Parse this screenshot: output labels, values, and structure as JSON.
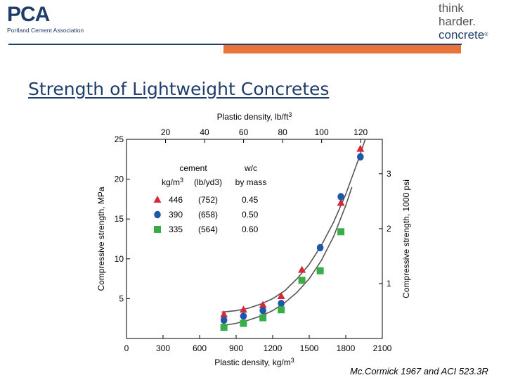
{
  "header": {
    "logo_left": "PCA",
    "logo_left_sub": "Portland Cement Association",
    "logo_right_line1": "think",
    "logo_right_line2": "harder.",
    "logo_right_line3": "concrete",
    "logo_right_mark": "®"
  },
  "slide": {
    "title": "Strength of Lightweight Concretes",
    "citation": "Mc.Cormick 1967 and ACI 523.3R"
  },
  "chart_data": {
    "type": "scatter",
    "xlabel": "Plastic density, kg/m3",
    "xlabel_top": "Plastic density, lb/ft3",
    "ylabel": "Compressive strength, MPa",
    "ylabel_right": "Compressive strength, 1000 psi",
    "xlim": [
      0,
      2100
    ],
    "ylim": [
      0,
      25
    ],
    "x_ticks": [
      0,
      300,
      600,
      900,
      1200,
      1500,
      1800,
      2100
    ],
    "y_ticks": [
      5,
      10,
      15,
      20,
      25
    ],
    "top_ticks": [
      20,
      40,
      60,
      80,
      100,
      120
    ],
    "right_ticks": [
      1,
      2,
      3
    ],
    "grid": false,
    "legend": {
      "placement": "top-left",
      "col_cement": "cement",
      "col_units_si": "kg/m3",
      "col_units_us": "(lb/yd3)",
      "col_wc": "w/c",
      "col_wc_sub": "by mass",
      "rows": [
        {
          "si": "446",
          "us": "(752)",
          "wc": "0.45"
        },
        {
          "si": "390",
          "us": "(658)",
          "wc": "0.50"
        },
        {
          "si": "335",
          "us": "(564)",
          "wc": "0.60"
        }
      ]
    },
    "series": [
      {
        "marker": "triangle",
        "color": "#d9263a",
        "x": [
          800,
          960,
          1120,
          1270,
          1440,
          1760,
          1920
        ],
        "y": [
          3.0,
          3.6,
          4.2,
          5.3,
          8.6,
          17.0,
          23.8
        ]
      },
      {
        "marker": "circle",
        "color": "#1f56a8",
        "x": [
          800,
          960,
          1120,
          1270,
          1590,
          1760,
          1920
        ],
        "y": [
          2.3,
          2.8,
          3.5,
          4.4,
          11.4,
          17.8,
          22.8
        ]
      },
      {
        "marker": "square",
        "color": "#3aad48",
        "x": [
          800,
          960,
          1120,
          1270,
          1440,
          1590,
          1760
        ],
        "y": [
          1.4,
          1.9,
          2.6,
          3.6,
          7.3,
          8.5,
          13.4
        ]
      }
    ],
    "curves": [
      {
        "x": [
          780,
          900,
          1000,
          1100,
          1200,
          1300,
          1400,
          1500,
          1600,
          1700,
          1800,
          1900,
          1960
        ],
        "y": [
          3.3,
          3.5,
          3.8,
          4.3,
          5.0,
          6.0,
          7.5,
          9.3,
          11.7,
          14.6,
          18.1,
          22.3,
          25.0
        ]
      },
      {
        "x": [
          780,
          900,
          1000,
          1100,
          1200,
          1300,
          1400,
          1500,
          1600,
          1700,
          1800,
          1850
        ],
        "y": [
          1.6,
          1.9,
          2.3,
          2.8,
          3.5,
          4.5,
          5.8,
          7.5,
          9.8,
          12.8,
          16.7,
          19.0
        ]
      }
    ]
  }
}
